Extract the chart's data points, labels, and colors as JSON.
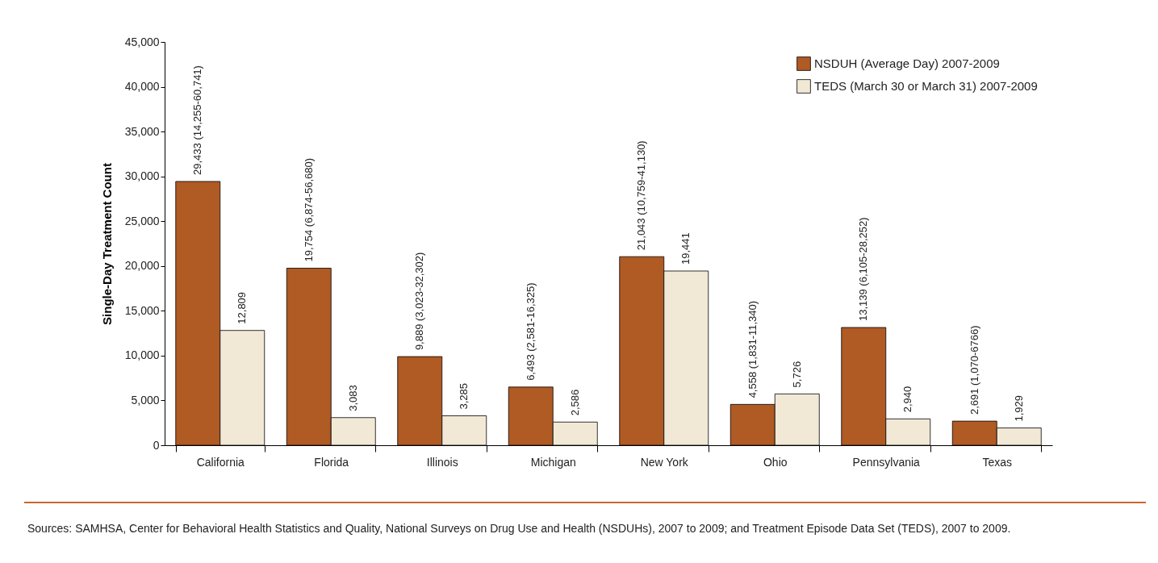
{
  "chart_data": {
    "type": "bar",
    "ylabel": "Single-Day Treatment Count",
    "categories": [
      "California",
      "Florida",
      "Illinois",
      "Michigan",
      "New York",
      "Ohio",
      "Pennsylvania",
      "Texas"
    ],
    "series": [
      {
        "name": "NSDUH (Average Day) 2007-2009",
        "color": "#b05a24",
        "values": [
          29433,
          19754,
          9889,
          6493,
          21043,
          4558,
          13139,
          2691
        ],
        "value_labels": [
          "29,433 (14,255-60,741)",
          "19,754 (6,874-56,680)",
          "9,889 (3,023-32,302)",
          "6,493 (2,581-16,325)",
          "21,043 (10,759-41,130)",
          "4,558 (1,831-11,340)",
          "13,139 (6,105-28,252)",
          "2,691 (1,070-6766)"
        ]
      },
      {
        "name": "TEDS (March 30 or March 31) 2007-2009",
        "color": "#f1e8d6",
        "values": [
          12809,
          3083,
          3285,
          2586,
          19441,
          5726,
          2940,
          1929
        ],
        "value_labels": [
          "12,809",
          "3,083",
          "3,285",
          "2,586",
          "19,441",
          "5,726",
          "2,940",
          "1,929"
        ]
      }
    ],
    "ylim": [
      0,
      45000
    ],
    "yticks": [
      0,
      {
        "value": 5000,
        "label": "5,000"
      },
      {
        "value": 10000,
        "label": "10,000"
      },
      {
        "value": 15000,
        "label": "15,000"
      },
      {
        "value": 20000,
        "label": "20,000"
      },
      {
        "value": 25000,
        "label": "25,000"
      },
      {
        "value": 30000,
        "label": "30,000"
      },
      {
        "value": 35000,
        "label": "35,000"
      },
      {
        "value": 40000,
        "label": "40,000"
      },
      {
        "value": 45000,
        "label": "45,000"
      }
    ],
    "grid": false,
    "legend": "top right",
    "annotations": [
      "Sources: SAMHSA, Center for Behavioral Health Statistics and Quality, National Surveys on Drug Use and Health (NSDUHs), 2007 to 2009; and Treatment Episode Data Set (TEDS), 2007 to 2009."
    ]
  }
}
